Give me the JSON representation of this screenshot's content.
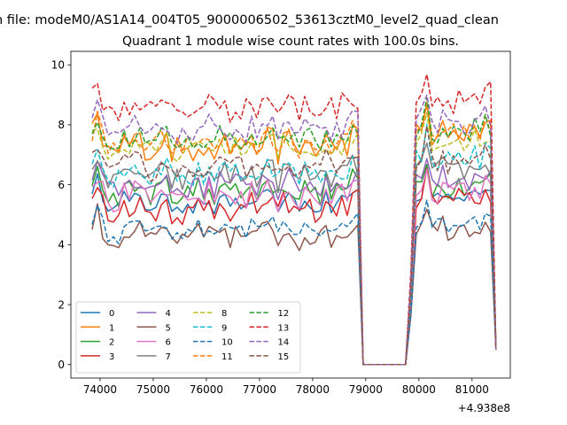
{
  "figure": {
    "suptitle": "n file: modeM0/AS1A14_004T05_9000006502_53613cztM0_level2_quad_clean",
    "title": "Quadrant 1 module wise count rates with 100.0s bins.",
    "offset_text": "+4.938e8"
  },
  "chart_data": {
    "type": "line",
    "title": "Quadrant 1 module wise count rates with 100.0s bins.",
    "x_offset": 493800000,
    "xlim": [
      73450,
      81720
    ],
    "ylim": [
      -0.45,
      10.45
    ],
    "xticks": [
      74000,
      75000,
      76000,
      77000,
      78000,
      79000,
      80000,
      81000
    ],
    "xtick_labels": [
      "74000",
      "75000",
      "76000",
      "77000",
      "78000",
      "79000",
      "80000",
      "81000"
    ],
    "yticks": [
      0,
      2,
      4,
      6,
      8,
      10
    ],
    "ytick_labels": [
      "0",
      "2",
      "4",
      "6",
      "8",
      "10"
    ],
    "legend_position": "lower-left",
    "legend_columns": 4,
    "time_range": {
      "seg1_start": 73850,
      "seg1_end": 78950,
      "gap_start": 78950,
      "gap_end": 79850,
      "seg2_start": 79850,
      "seg2_end": 81450,
      "bin": 100
    },
    "series": [
      {
        "name": "0",
        "color": "#1f77b4",
        "dash": "solid",
        "level1": 5.4,
        "level2": 5.7,
        "noise": 0.25
      },
      {
        "name": "1",
        "color": "#ff7f0e",
        "dash": "solid",
        "level1": 7.3,
        "level2": 7.8,
        "noise": 0.4
      },
      {
        "name": "2",
        "color": "#2ca02c",
        "dash": "solid",
        "level1": 5.8,
        "level2": 6.1,
        "noise": 0.35
      },
      {
        "name": "3",
        "color": "#d62728",
        "dash": "solid",
        "level1": 5.2,
        "level2": 5.6,
        "noise": 0.35
      },
      {
        "name": "4",
        "color": "#9467bd",
        "dash": "solid",
        "level1": 6.0,
        "level2": 6.3,
        "noise": 0.35
      },
      {
        "name": "5",
        "color": "#8c564b",
        "dash": "solid",
        "level1": 4.3,
        "level2": 4.7,
        "noise": 0.35
      },
      {
        "name": "6",
        "color": "#e377c2",
        "dash": "solid",
        "level1": 5.6,
        "level2": 5.9,
        "noise": 0.35
      },
      {
        "name": "7",
        "color": "#7f7f7f",
        "dash": "solid",
        "level1": 6.3,
        "level2": 6.6,
        "noise": 0.35
      },
      {
        "name": "8",
        "color": "#bcbd22",
        "dash": "dashed",
        "level1": 7.2,
        "level2": 7.6,
        "noise": 0.35
      },
      {
        "name": "9",
        "color": "#17becf",
        "dash": "dashed",
        "level1": 6.4,
        "level2": 7.0,
        "noise": 0.35
      },
      {
        "name": "10",
        "color": "#1f77b4",
        "dash": "dashed",
        "level1": 4.5,
        "level2": 4.8,
        "noise": 0.25
      },
      {
        "name": "11",
        "color": "#ff7f0e",
        "dash": "dashed",
        "level1": 7.4,
        "level2": 7.9,
        "noise": 0.35
      },
      {
        "name": "12",
        "color": "#2ca02c",
        "dash": "dashed",
        "level1": 7.5,
        "level2": 7.9,
        "noise": 0.35
      },
      {
        "name": "13",
        "color": "#d62728",
        "dash": "dashed",
        "level1": 8.6,
        "level2": 9.0,
        "noise": 0.45
      },
      {
        "name": "14",
        "color": "#9467bd",
        "dash": "dashed",
        "level1": 7.8,
        "level2": 8.2,
        "noise": 0.35
      },
      {
        "name": "15",
        "color": "#8c564b",
        "dash": "dashed",
        "level1": 6.6,
        "level2": 6.9,
        "noise": 0.35
      }
    ]
  }
}
